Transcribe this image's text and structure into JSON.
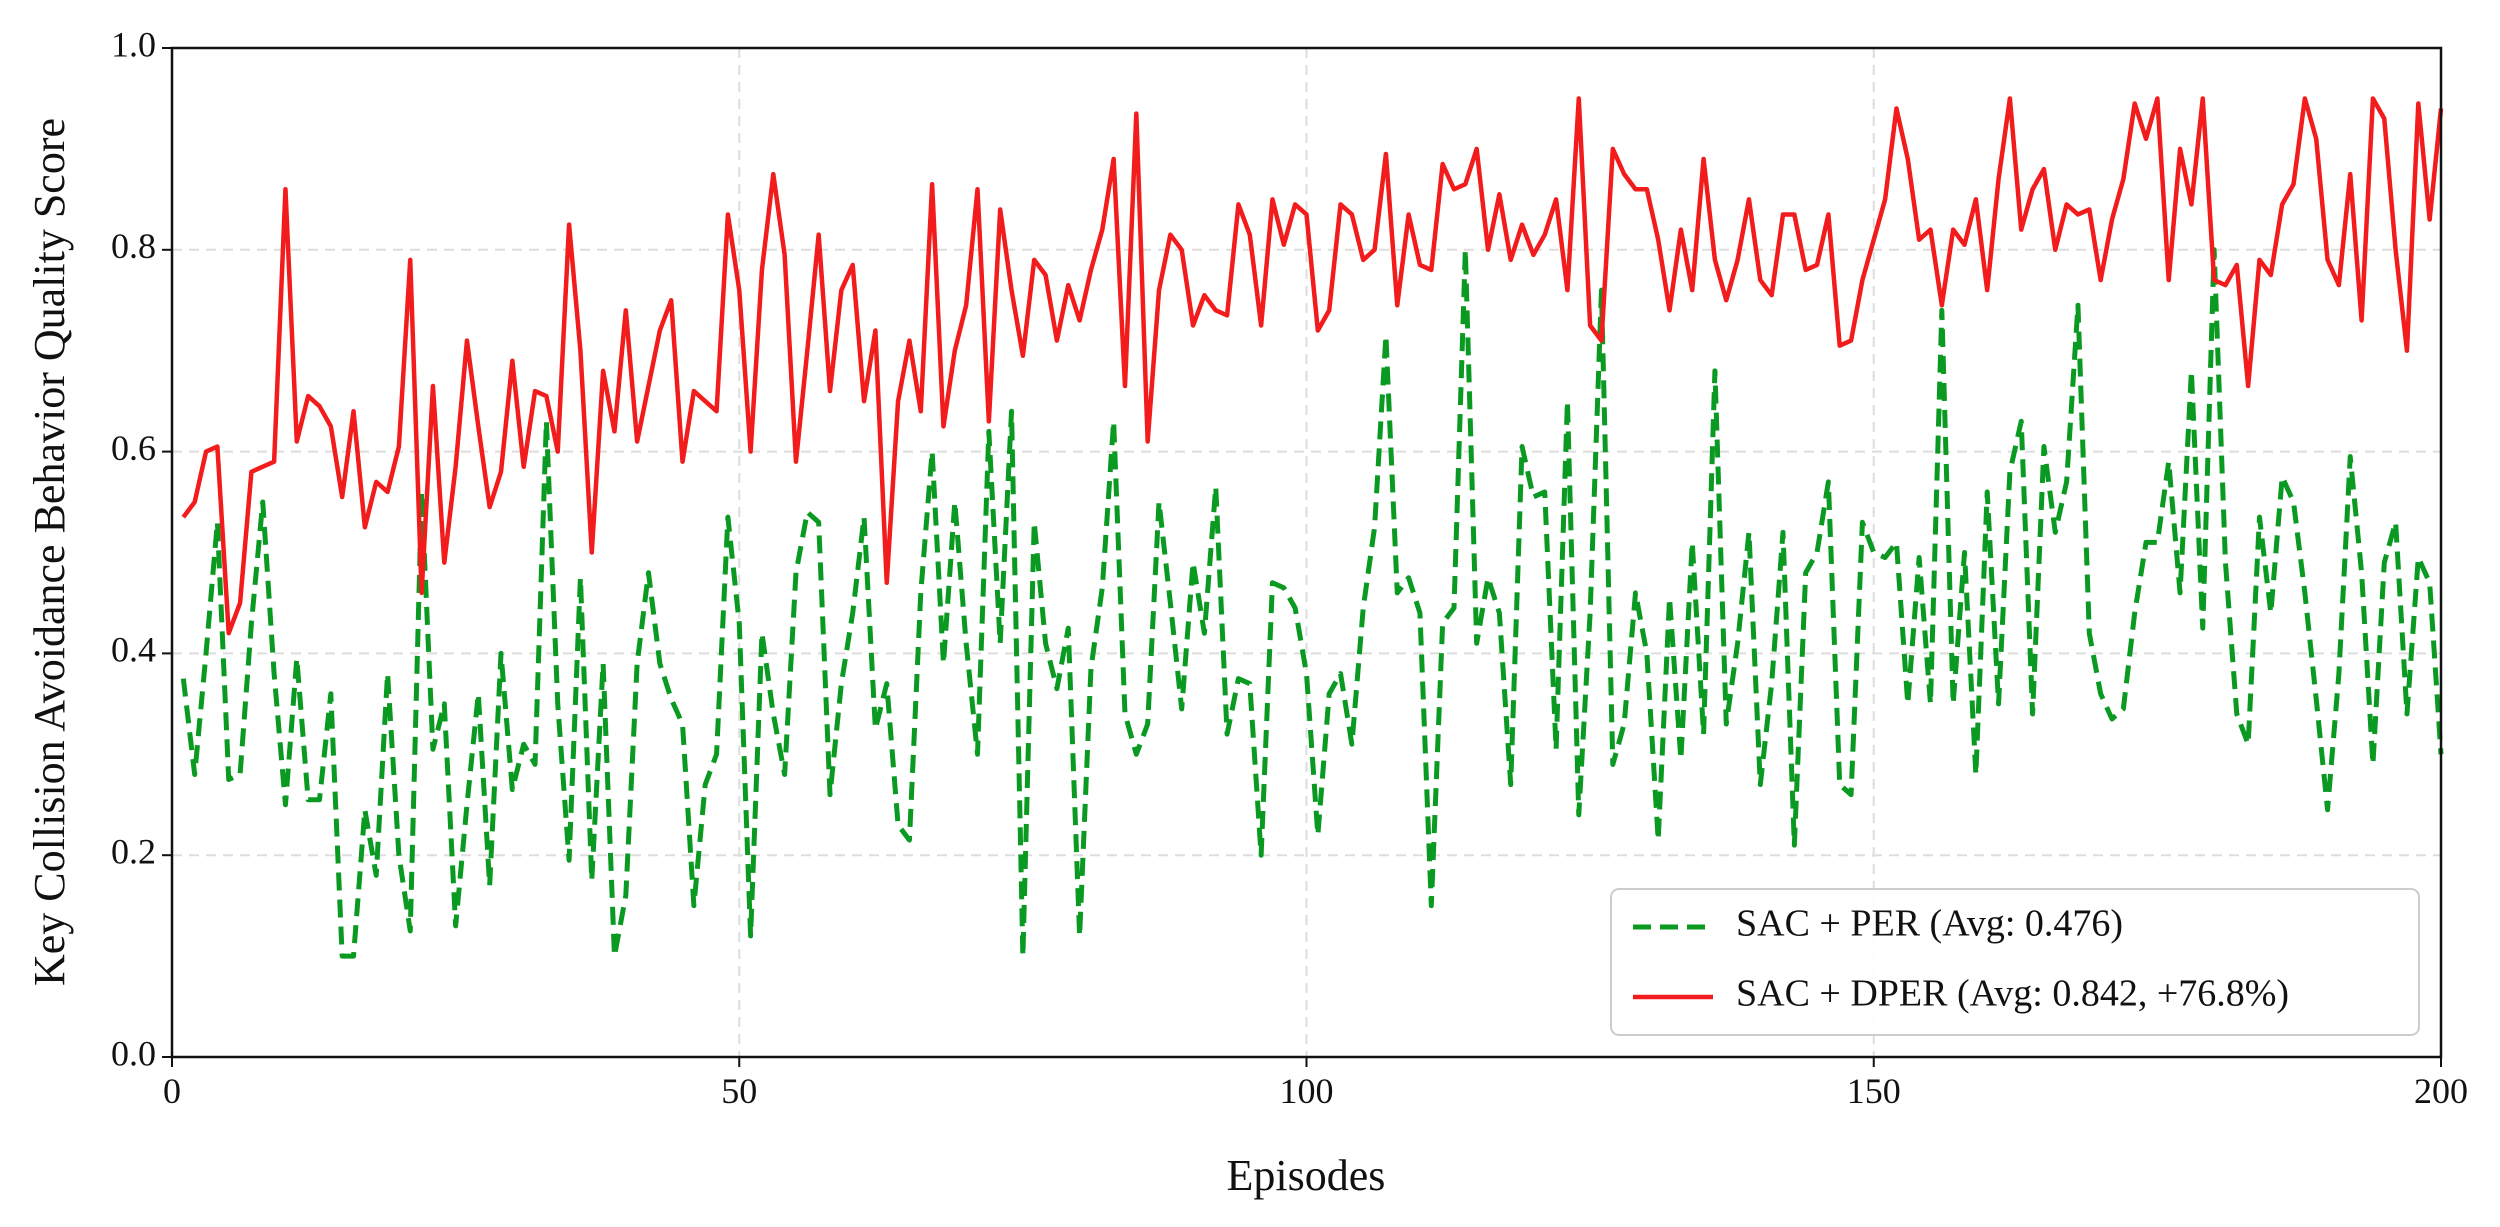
{
  "chart_data": {
    "type": "line",
    "xlabel": "Episodes",
    "ylabel": "Key Collision Avoidance Behavior Quality Score",
    "x": [
      1,
      2,
      3,
      4,
      5,
      6,
      7,
      8,
      9,
      10,
      11,
      12,
      13,
      14,
      15,
      16,
      17,
      18,
      19,
      20,
      21,
      22,
      23,
      24,
      25,
      26,
      27,
      28,
      29,
      30,
      31,
      32,
      33,
      34,
      35,
      36,
      37,
      38,
      39,
      40,
      41,
      42,
      43,
      44,
      45,
      46,
      47,
      48,
      49,
      50,
      51,
      52,
      53,
      54,
      55,
      56,
      57,
      58,
      59,
      60,
      61,
      62,
      63,
      64,
      65,
      66,
      67,
      68,
      69,
      70,
      71,
      72,
      73,
      74,
      75,
      76,
      77,
      78,
      79,
      80,
      81,
      82,
      83,
      84,
      85,
      86,
      87,
      88,
      89,
      90,
      91,
      92,
      93,
      94,
      95,
      96,
      97,
      98,
      99,
      100,
      101,
      102,
      103,
      104,
      105,
      106,
      107,
      108,
      109,
      110,
      111,
      112,
      113,
      114,
      115,
      116,
      117,
      118,
      119,
      120,
      121,
      122,
      123,
      124,
      125,
      126,
      127,
      128,
      129,
      130,
      131,
      132,
      133,
      134,
      135,
      136,
      137,
      138,
      139,
      140,
      141,
      142,
      143,
      144,
      145,
      146,
      147,
      148,
      149,
      150,
      151,
      152,
      153,
      154,
      155,
      156,
      157,
      158,
      159,
      160,
      161,
      162,
      163,
      164,
      165,
      166,
      167,
      168,
      169,
      170,
      171,
      172,
      173,
      174,
      175,
      176,
      177,
      178,
      179,
      180,
      181,
      182,
      183,
      184,
      185,
      186,
      187,
      188,
      189,
      190,
      191,
      192,
      193,
      194,
      195,
      196,
      197,
      198,
      199,
      200
    ],
    "series": [
      {
        "name": "SAC + PER (Avg: 0.476)",
        "color": "#0a9a22",
        "dash": true,
        "values": [
          0.375,
          0.28,
          0.4,
          0.53,
          0.275,
          0.28,
          0.43,
          0.55,
          0.38,
          0.25,
          0.395,
          0.255,
          0.255,
          0.36,
          0.1,
          0.1,
          0.245,
          0.18,
          0.38,
          0.2,
          0.125,
          0.56,
          0.305,
          0.35,
          0.13,
          0.25,
          0.36,
          0.17,
          0.4,
          0.265,
          0.31,
          0.29,
          0.63,
          0.35,
          0.195,
          0.475,
          0.175,
          0.39,
          0.1,
          0.16,
          0.39,
          0.48,
          0.39,
          0.355,
          0.33,
          0.15,
          0.27,
          0.3,
          0.535,
          0.43,
          0.12,
          0.42,
          0.34,
          0.28,
          0.48,
          0.54,
          0.53,
          0.26,
          0.37,
          0.44,
          0.535,
          0.325,
          0.37,
          0.23,
          0.215,
          0.46,
          0.6,
          0.39,
          0.55,
          0.41,
          0.3,
          0.62,
          0.41,
          0.64,
          0.1,
          0.53,
          0.41,
          0.365,
          0.425,
          0.12,
          0.385,
          0.465,
          0.63,
          0.34,
          0.3,
          0.33,
          0.55,
          0.45,
          0.345,
          0.49,
          0.42,
          0.565,
          0.32,
          0.375,
          0.37,
          0.2,
          0.47,
          0.465,
          0.445,
          0.38,
          0.22,
          0.36,
          0.38,
          0.31,
          0.445,
          0.525,
          0.715,
          0.46,
          0.475,
          0.44,
          0.15,
          0.43,
          0.445,
          0.8,
          0.41,
          0.475,
          0.44,
          0.27,
          0.605,
          0.555,
          0.56,
          0.305,
          0.65,
          0.24,
          0.44,
          0.76,
          0.29,
          0.33,
          0.46,
          0.4,
          0.215,
          0.455,
          0.295,
          0.51,
          0.32,
          0.68,
          0.33,
          0.41,
          0.52,
          0.27,
          0.37,
          0.52,
          0.21,
          0.48,
          0.5,
          0.57,
          0.27,
          0.26,
          0.53,
          0.5,
          0.495,
          0.51,
          0.35,
          0.495,
          0.35,
          0.74,
          0.35,
          0.5,
          0.28,
          0.56,
          0.35,
          0.58,
          0.63,
          0.34,
          0.605,
          0.52,
          0.57,
          0.745,
          0.42,
          0.36,
          0.335,
          0.345,
          0.44,
          0.51,
          0.51,
          0.59,
          0.46,
          0.68,
          0.425,
          0.8,
          0.49,
          0.34,
          0.31,
          0.535,
          0.44,
          0.575,
          0.55,
          0.46,
          0.355,
          0.245,
          0.38,
          0.595,
          0.48,
          0.29,
          0.49,
          0.53,
          0.34,
          0.495,
          0.47,
          0.3
        ]
      },
      {
        "name": "SAC + DPER (Avg: 0.842, +76.8%)",
        "color": "#f21c1c",
        "dash": false,
        "values": [
          0.535,
          0.55,
          0.6,
          0.605,
          0.42,
          0.45,
          0.58,
          0.585,
          0.59,
          0.86,
          0.61,
          0.655,
          0.645,
          0.625,
          0.555,
          0.64,
          0.525,
          0.57,
          0.56,
          0.605,
          0.79,
          0.46,
          0.665,
          0.49,
          0.585,
          0.71,
          0.625,
          0.545,
          0.58,
          0.69,
          0.585,
          0.66,
          0.655,
          0.6,
          0.825,
          0.7,
          0.5,
          0.68,
          0.62,
          0.74,
          0.61,
          0.665,
          0.72,
          0.75,
          0.59,
          0.66,
          0.65,
          0.64,
          0.835,
          0.76,
          0.6,
          0.78,
          0.875,
          0.795,
          0.59,
          0.7,
          0.815,
          0.66,
          0.76,
          0.785,
          0.65,
          0.72,
          0.47,
          0.65,
          0.71,
          0.64,
          0.865,
          0.625,
          0.7,
          0.745,
          0.86,
          0.63,
          0.84,
          0.76,
          0.695,
          0.79,
          0.775,
          0.71,
          0.765,
          0.73,
          0.78,
          0.82,
          0.89,
          0.665,
          0.935,
          0.61,
          0.76,
          0.815,
          0.8,
          0.725,
          0.755,
          0.74,
          0.735,
          0.845,
          0.815,
          0.725,
          0.85,
          0.805,
          0.845,
          0.835,
          0.72,
          0.74,
          0.845,
          0.835,
          0.79,
          0.8,
          0.895,
          0.745,
          0.835,
          0.785,
          0.78,
          0.885,
          0.86,
          0.865,
          0.9,
          0.8,
          0.855,
          0.79,
          0.825,
          0.795,
          0.815,
          0.85,
          0.76,
          0.95,
          0.725,
          0.71,
          0.9,
          0.875,
          0.86,
          0.86,
          0.81,
          0.74,
          0.82,
          0.76,
          0.89,
          0.79,
          0.75,
          0.79,
          0.85,
          0.77,
          0.755,
          0.835,
          0.835,
          0.78,
          0.785,
          0.835,
          0.705,
          0.71,
          0.77,
          0.81,
          0.85,
          0.94,
          0.89,
          0.81,
          0.82,
          0.745,
          0.82,
          0.805,
          0.85,
          0.76,
          0.87,
          0.95,
          0.82,
          0.86,
          0.88,
          0.8,
          0.845,
          0.835,
          0.84,
          0.77,
          0.83,
          0.87,
          0.945,
          0.91,
          0.95,
          0.77,
          0.9,
          0.845,
          0.95,
          0.77,
          0.765,
          0.785,
          0.665,
          0.79,
          0.775,
          0.845,
          0.865,
          0.95,
          0.91,
          0.79,
          0.765,
          0.875,
          0.73,
          0.95,
          0.93,
          0.8,
          0.7,
          0.945,
          0.83,
          0.94
        ]
      }
    ],
    "xlim": [
      0,
      200
    ],
    "xticks": [
      0,
      50,
      100,
      150,
      200
    ],
    "ylim": [
      0,
      1
    ],
    "yticks": [
      {
        "value": 0,
        "label": "0.0"
      },
      {
        "value": 0.2,
        "label": "0.2"
      },
      {
        "value": 0.4,
        "label": "0.4"
      },
      {
        "value": 0.6,
        "label": "0.6"
      },
      {
        "value": 0.8,
        "label": "0.8"
      },
      {
        "value": 1,
        "label": "1.0"
      }
    ],
    "grid": true,
    "legend": "lower right"
  }
}
